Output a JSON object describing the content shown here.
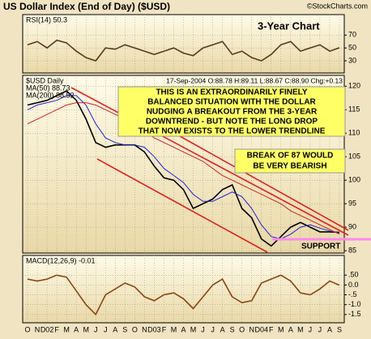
{
  "title": "US Dollar Index (End of Day) ($USD)",
  "source": "©StockCharts.com",
  "chart_data": [
    {
      "type": "line",
      "subtitle": "3-Year Chart",
      "series": [
        {
          "name": "RSI(14) 50.3",
          "color": "#5a3a1a",
          "values": [
            55,
            60,
            50,
            62,
            58,
            45,
            35,
            30,
            50,
            48,
            55,
            50,
            45,
            40,
            45,
            50,
            42,
            38,
            50,
            55,
            60,
            40,
            45,
            35,
            30,
            40,
            55,
            60,
            45,
            50,
            55,
            45,
            50.3
          ]
        }
      ],
      "ylim": [
        11,
        102
      ],
      "yticks": [
        30,
        50,
        70
      ],
      "grid": true
    },
    {
      "type": "line",
      "info": "17-Sep-2004 O:88.78 H:89.11 L:88.67 C:88.90 Chg:+0.13",
      "series": [
        {
          "name": "$USD Daily",
          "color": "#000000",
          "values": [
            116,
            116.5,
            117,
            118,
            119,
            117,
            113,
            108,
            107,
            107.5,
            107.5,
            107.5,
            106,
            103,
            100.5,
            100,
            98,
            94,
            95,
            96,
            98,
            99,
            94,
            92,
            87.5,
            86,
            88,
            90,
            91,
            90,
            89,
            89,
            88.9
          ]
        },
        {
          "name": "MA(50) 88.73",
          "color": "#2222cc",
          "values": [
            115,
            116,
            116.5,
            117,
            118,
            118,
            116,
            112,
            109,
            108,
            107.5,
            107.5,
            107,
            105,
            102.5,
            101,
            99.5,
            97,
            95.5,
            95.5,
            96.5,
            97.5,
            96.5,
            94,
            90.5,
            88,
            87.5,
            88.5,
            90,
            90.5,
            89.8,
            89.2,
            88.73
          ]
        },
        {
          "name": "MA(200) 88.52",
          "color": "#cc2222",
          "values": [
            112,
            113,
            114,
            115,
            116,
            116.5,
            116.5,
            116,
            115,
            114,
            113,
            112,
            110.5,
            109,
            108,
            107,
            106,
            105,
            104,
            102.5,
            101,
            100,
            99,
            98,
            97,
            96,
            95,
            93.5,
            92.5,
            91.5,
            90.5,
            89.5,
            88.52
          ]
        }
      ],
      "ylim": [
        84.5,
        122.3
      ],
      "yticks": [
        85,
        90,
        95,
        100,
        105,
        110,
        115,
        120
      ],
      "grid": true,
      "annotations": [
        "THIS IS AN EXTRAORDINARILY FINELY",
        "BALANCED SITUATION WITH THE DOLLAR",
        "NUDGING A BREAKOUT FROM THE 3-YEAR",
        "DOWNTREND - BUT NOTE THE LONG DROP",
        "THAT NOW EXISTS TO THE LOWER TRENDLINE"
      ],
      "annotation2": [
        "BREAK OF 87 WOULD",
        "BE VERY BEARISH"
      ],
      "support_label": "SUPPORT"
    },
    {
      "type": "line",
      "categories": [
        "O",
        "N",
        "D02",
        "F",
        "M",
        "A",
        "M",
        "J",
        "J",
        "A",
        "S",
        "O",
        "N",
        "D03",
        "F",
        "M",
        "A",
        "M",
        "J",
        "J",
        "A",
        "S",
        "O",
        "N",
        "D04",
        "F",
        "M",
        "A",
        "M",
        "J",
        "J",
        "A",
        "S"
      ],
      "series": [
        {
          "name": "MACD(12,26,9) -0.01",
          "color": "#8b4513",
          "values": [
            0.3,
            0.2,
            0.3,
            0.5,
            0.4,
            -0.3,
            -1.0,
            -1.5,
            -0.5,
            -0.2,
            0.1,
            -0.1,
            -0.6,
            -0.8,
            -0.5,
            -0.4,
            -0.7,
            -1.2,
            -0.6,
            0,
            0.3,
            -0.6,
            -0.9,
            -0.8,
            0.1,
            0.3,
            0.5,
            0.2,
            -0.4,
            -0.5,
            -0.2,
            0.2,
            -0.01
          ]
        }
      ],
      "ylim": [
        -1.92,
        1.5
      ],
      "yticks": [
        {
          "value": 0.5,
          "label": ".50"
        },
        {
          "value": 0,
          "label": "0.0"
        },
        {
          "value": -0.5,
          "label": "-.5"
        },
        {
          "value": -1,
          "label": "-1.0"
        },
        {
          "value": -1.5,
          "label": "-1.5"
        }
      ],
      "grid": true
    }
  ]
}
